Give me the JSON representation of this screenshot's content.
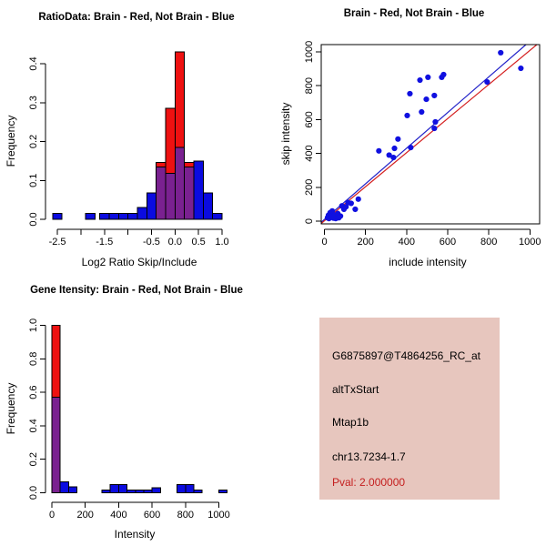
{
  "colors": {
    "hist_blue": "#0B0BE0",
    "hist_red": "#EE1111",
    "hist_purple": "#7A2190",
    "point_blue": "#1010E0",
    "line_blue": "#2020C8",
    "line_red": "#D42020",
    "panel_bg": "#E7C6BE",
    "pval_red": "#C41E1E",
    "axis_black": "#000000"
  },
  "info_panel": {
    "lines": [
      {
        "text": "G6875897@T4864256_RC_at"
      },
      {
        "text": "altTxStart"
      },
      {
        "text": "Mtap1b"
      },
      {
        "text": "chr13.7234-1.7"
      },
      {
        "text": "Pval: 2.000000"
      }
    ]
  },
  "chart_data": [
    {
      "id": "ratio_hist",
      "type": "histogram-overlay",
      "title": "RatioData: Brain - Red, Not Brain - Blue",
      "xlabel": "Log2 Ratio Skip/Include",
      "ylabel": "Frequency",
      "xlim": [
        -2.75,
        1.05
      ],
      "ylim": [
        0,
        0.43
      ],
      "bin_width": 0.2,
      "legend": {
        "red": "Brain",
        "blue": "Not Brain"
      },
      "xticks": {
        "values": [
          -2.5,
          -2.0,
          -1.5,
          -1.0,
          -0.5,
          0.0,
          0.5,
          1.0
        ],
        "labels": [
          "-2.5",
          "",
          "-1.5",
          "",
          "-0.5",
          "0.0",
          "0.5",
          "1.0"
        ]
      },
      "yticks": {
        "values": [
          0,
          0.1,
          0.2,
          0.3,
          0.4
        ],
        "labels": [
          "0.0",
          "0.1",
          "0.2",
          "0.3",
          "0.4"
        ]
      },
      "bars": [
        {
          "x": -2.5,
          "blue": 0.015
        },
        {
          "x": -1.8,
          "blue": 0.015
        },
        {
          "x": -1.5,
          "blue": 0.015
        },
        {
          "x": -1.3,
          "blue": 0.015
        },
        {
          "x": -1.1,
          "blue": 0.015
        },
        {
          "x": -0.9,
          "blue": 0.015
        },
        {
          "x": -0.7,
          "blue": 0.03
        },
        {
          "x": -0.5,
          "blue": 0.068
        },
        {
          "x": -0.3,
          "blue": 0.135,
          "red": 0.146
        },
        {
          "x": -0.1,
          "blue": 0.118,
          "red": 0.285
        },
        {
          "x": 0.1,
          "blue": 0.185,
          "red": 0.43
        },
        {
          "x": 0.3,
          "blue": 0.135,
          "red": 0.146
        },
        {
          "x": 0.5,
          "blue": 0.15
        },
        {
          "x": 0.7,
          "blue": 0.068
        },
        {
          "x": 0.9,
          "blue": 0.015
        }
      ]
    },
    {
      "id": "scatter",
      "type": "scatter",
      "title": "Brain - Red, Not Brain - Blue",
      "xlabel": "include intensity",
      "ylabel": "skip intensity",
      "xlim": [
        -15,
        1047
      ],
      "ylim": [
        -16,
        1043
      ],
      "box": true,
      "xticks": {
        "values": [
          0,
          200,
          400,
          600,
          800,
          1000
        ],
        "labels": [
          "0",
          "200",
          "400",
          "600",
          "800",
          "1000"
        ]
      },
      "yticks": {
        "values": [
          0,
          200,
          400,
          600,
          800,
          1000
        ],
        "labels": [
          "0",
          "200",
          "400",
          "600",
          "800",
          "1000"
        ]
      },
      "points": [
        [
          15,
          20
        ],
        [
          20,
          35
        ],
        [
          22,
          15
        ],
        [
          28,
          50
        ],
        [
          32,
          25
        ],
        [
          38,
          60
        ],
        [
          44,
          18
        ],
        [
          50,
          35
        ],
        [
          55,
          15
        ],
        [
          60,
          28
        ],
        [
          65,
          45
        ],
        [
          70,
          20
        ],
        [
          78,
          30
        ],
        [
          85,
          90
        ],
        [
          95,
          70
        ],
        [
          105,
          85
        ],
        [
          115,
          110
        ],
        [
          130,
          105
        ],
        [
          150,
          70
        ],
        [
          165,
          130
        ],
        [
          265,
          415
        ],
        [
          315,
          390
        ],
        [
          336,
          376
        ],
        [
          341,
          430
        ],
        [
          358,
          485
        ],
        [
          420,
          435
        ],
        [
          403,
          624
        ],
        [
          416,
          753
        ],
        [
          465,
          833
        ],
        [
          473,
          645
        ],
        [
          496,
          720
        ],
        [
          504,
          850
        ],
        [
          535,
          548
        ],
        [
          535,
          742
        ],
        [
          540,
          586
        ],
        [
          571,
          850
        ],
        [
          580,
          866
        ],
        [
          792,
          822
        ],
        [
          858,
          995
        ],
        [
          956,
          903
        ]
      ],
      "lines": [
        {
          "color": "line_blue",
          "x1": -14,
          "y1": -5,
          "x2": 981,
          "y2": 1043
        },
        {
          "color": "line_red",
          "x1": -14,
          "y1": -12,
          "x2": 1034,
          "y2": 1043
        }
      ]
    },
    {
      "id": "gene_hist",
      "type": "histogram-overlay",
      "title": "Gene Itensity: Brain - Red, Not Brain - Blue",
      "xlabel": "Intensity",
      "ylabel": "Frequency",
      "xlim": [
        -30,
        1070
      ],
      "ylim": [
        0,
        1.0
      ],
      "bin_width": 50,
      "legend": {
        "red": "Brain",
        "blue": "Not Brain"
      },
      "xticks": {
        "values": [
          0,
          200,
          400,
          600,
          800,
          1000
        ],
        "labels": [
          "0",
          "200",
          "400",
          "600",
          "800",
          "1000"
        ]
      },
      "yticks": {
        "values": [
          0,
          0.2,
          0.4,
          0.6,
          0.8,
          1.0
        ],
        "labels": [
          "0.0",
          "0.2",
          "0.4",
          "0.6",
          "0.8",
          "1.0"
        ]
      },
      "bars": [
        {
          "x": 25,
          "blue": 0.57,
          "red": 1.0
        },
        {
          "x": 75,
          "blue": 0.065
        },
        {
          "x": 125,
          "blue": 0.035
        },
        {
          "x": 325,
          "blue": 0.015
        },
        {
          "x": 375,
          "blue": 0.05
        },
        {
          "x": 425,
          "blue": 0.05
        },
        {
          "x": 475,
          "blue": 0.015
        },
        {
          "x": 525,
          "blue": 0.015
        },
        {
          "x": 575,
          "blue": 0.015
        },
        {
          "x": 625,
          "blue": 0.03
        },
        {
          "x": 775,
          "blue": 0.05
        },
        {
          "x": 825,
          "blue": 0.05
        },
        {
          "x": 875,
          "blue": 0.015
        },
        {
          "x": 1025,
          "blue": 0.015
        }
      ]
    }
  ]
}
